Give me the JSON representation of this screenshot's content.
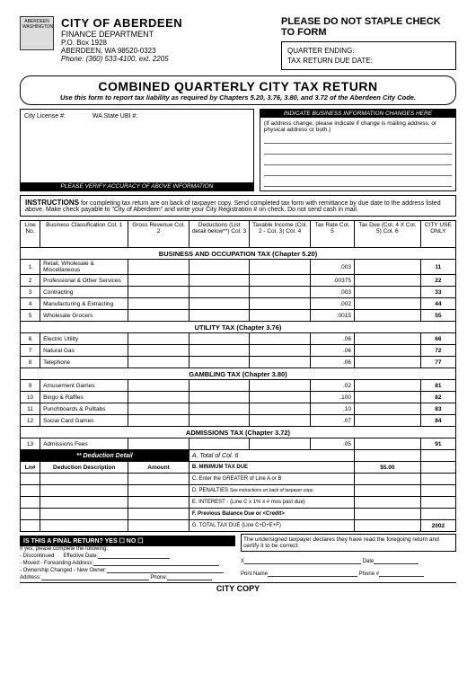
{
  "header": {
    "logo_text": "ABERDEEN WASHINGTON",
    "city": "CITY OF ABERDEEN",
    "dept": "FINANCE DEPARTMENT",
    "addr1": "P.O. Box 1928",
    "addr2": "ABERDEEN, WA 98520-0323",
    "phone": "Phone: (360) 533-4100, ext. 2205",
    "warning": "PLEASE DO NOT STAPLE CHECK TO FORM",
    "quarter_ending": "QUARTER ENDING:",
    "due_date": "TAX RETURN DUE DATE:"
  },
  "title": {
    "main": "COMBINED QUARTERLY CITY TAX RETURN",
    "sub": "Use this form to report tax liability as required by Chapters 5.20, 3.76, 3.80, and 3.72 of the Aberdeen City Code."
  },
  "infoboxes": {
    "lic_label": "City License #:",
    "ubi_label": "WA State UBI #:",
    "left_blk": "PLEASE VERIFY ACCURACY OF ABOVE INFORMATION",
    "right_blk": "INDICATE BUSINESS INFORMATION CHANGES HERE",
    "right_text": "(If address change, please indicate if change is mailing address, or physical address or both.)"
  },
  "instructions": {
    "bold": "INSTRUCTIONS",
    "text": " for completing tax return are on back of taxpayer copy. Send completed tax form with remittance by due date to the address listed above. Make check payable to \"City of Aberdeen\" and write your City Registration # on check. Do not send cash in mail."
  },
  "cols": {
    "line": "Line No.",
    "c1": "Business Classification Col. 1",
    "c2": "Gross Revenue Col. 2",
    "c3": "Deductions (List detail below**) Col. 3",
    "c4": "Taxable Income (Col. 2 - Col. 3) Col. 4",
    "c5": "Tax Rate Col. 5",
    "c6": "Tax Due (Col. 4 X Col. 5) Col. 6",
    "city": "CITY USE ONLY"
  },
  "sect1": {
    "title": "BUSINESS AND OCCUPATION TAX (Chapter 5.20)",
    "rows": [
      {
        "n": "1",
        "label": "Retail, Wholesale & Miscellaneous",
        "rate": ".003",
        "city": "11"
      },
      {
        "n": "2",
        "label": "Professional & Other Services",
        "rate": ".00375",
        "city": "22"
      },
      {
        "n": "3",
        "label": "Contracting",
        "rate": ".003",
        "city": "33"
      },
      {
        "n": "4",
        "label": "Manufacturing & Extracting",
        "rate": ".002",
        "city": "44"
      },
      {
        "n": "5",
        "label": "Wholesale Grocers",
        "rate": ".0015",
        "city": "55"
      }
    ]
  },
  "sect2": {
    "title": "UTILITY TAX (Chapter 3.76)",
    "rows": [
      {
        "n": "6",
        "label": "Electric Utility",
        "rate": ".06",
        "city": "66"
      },
      {
        "n": "7",
        "label": "Natural Gas",
        "rate": ".06",
        "city": "72"
      },
      {
        "n": "8",
        "label": "Telephone",
        "rate": ".06",
        "city": "77"
      }
    ]
  },
  "sect3": {
    "title": "GAMBLING TAX (Chapter 3.80)",
    "rows": [
      {
        "n": "9",
        "label": "Amusement Games",
        "rate": ".02",
        "city": "81"
      },
      {
        "n": "10",
        "label": "Bingo & Raffles",
        "rate": ".100",
        "city": "82"
      },
      {
        "n": "11",
        "label": "Punchboards & Pulltabs",
        "rate": ".10",
        "city": "83"
      },
      {
        "n": "12",
        "label": "Social Card Games",
        "rate": ".07",
        "city": "84"
      }
    ]
  },
  "sect4": {
    "title": "ADMISSIONS TAX (Chapter 3.72)",
    "rows": [
      {
        "n": "13",
        "label": "Admissions Fees",
        "rate": ".05",
        "city": "91"
      }
    ]
  },
  "ded": {
    "hdr": "** Deduction Detail",
    "ln": "Ln#",
    "desc": "Deduction Description",
    "amt": "Amount"
  },
  "summary": {
    "a": "A. Total of Col. 6",
    "b": "B. MINIMUM TAX DUE",
    "b_val": "$5.00",
    "c": "C. Enter the GREATER of Line A or B",
    "d": "D. PENALTIES",
    "d_note": "See instructions on back of taxpayer copy.",
    "e": "E. INTEREST - (Line C x 1% x # mos past due)",
    "f": "F. Previous Balance Due or <Credit>",
    "g": "G. TOTAL TAX DUE (Line C+D+E+F)",
    "g_code": "2002"
  },
  "final": {
    "bar": "IS THIS A FINAL RETURN?   YES ☐    NO ☐",
    "iftext": "If yes, please complete the following:",
    "disc": "- Discontinued",
    "eff": "Effective Date:",
    "moved": "- Moved - Forwarding Address:",
    "owner": "- Ownership Changed - New Owner:",
    "addr": "Address:",
    "phone": "Phone:",
    "declare": "The undersigned taxpayer declares they have read the foregoing return and certify it to be correct.",
    "x": "X",
    "date": "Date",
    "print": "Print Name",
    "pphone": "Phone #"
  },
  "footer": "CITY COPY"
}
